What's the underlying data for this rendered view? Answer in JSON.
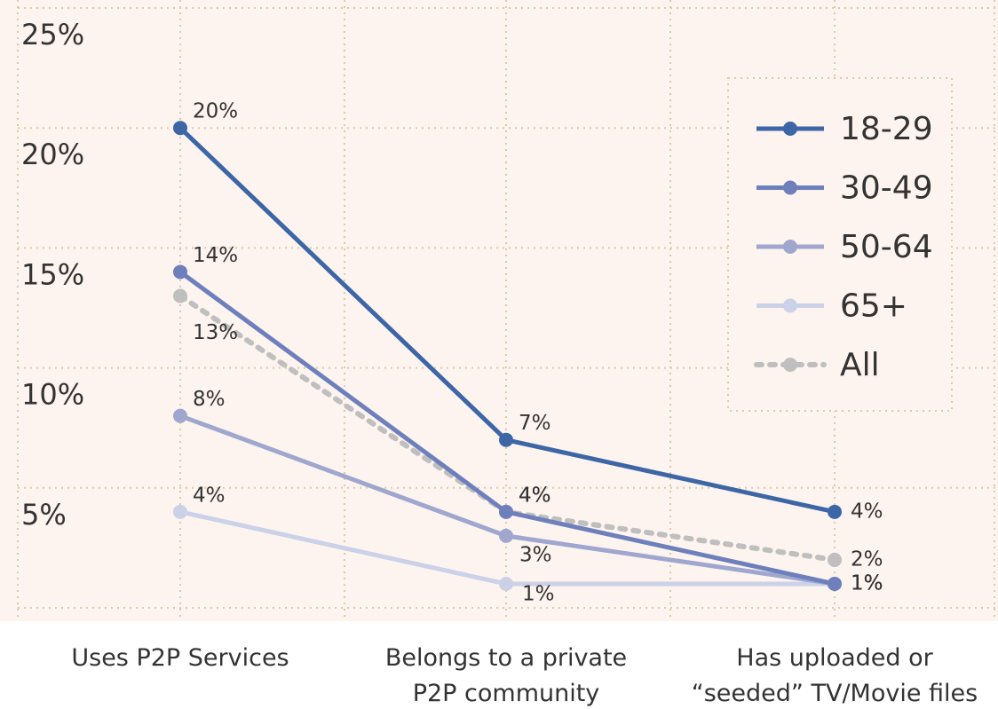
{
  "chart_data": {
    "type": "line",
    "categories": [
      "Uses P2P Services",
      "Belongs to a private\nP2P community",
      "Has uploaded or\n“seeded” TV/Movie files"
    ],
    "series": [
      {
        "name": "18-29",
        "color": "#3d66a6",
        "values": [
          20,
          7,
          4
        ],
        "value_labels": [
          "20%",
          "7%",
          "4%"
        ]
      },
      {
        "name": "30-49",
        "color": "#6e80bc",
        "values": [
          14,
          4,
          1
        ],
        "value_labels": [
          "14%",
          "4%",
          "1%"
        ]
      },
      {
        "name": "50-64",
        "color": "#9fa7cf",
        "values": [
          8,
          3,
          1
        ],
        "value_labels": [
          "8%",
          "3%",
          "1%"
        ]
      },
      {
        "name": "65+",
        "color": "#cbd2e8",
        "values": [
          4,
          1,
          1
        ],
        "value_labels": [
          "4%",
          "1%",
          "1%"
        ]
      },
      {
        "name": "All",
        "color": "#bfbfbf",
        "dashed": true,
        "values": [
          13,
          4,
          2
        ],
        "value_labels": [
          "13%",
          "4%",
          "2%"
        ]
      }
    ],
    "ylim": [
      0,
      25
    ],
    "yticks": [
      {
        "value": 5,
        "label": "5%"
      },
      {
        "value": 10,
        "label": "10%"
      },
      {
        "value": 15,
        "label": "15%"
      },
      {
        "value": 20,
        "label": "20%"
      },
      {
        "value": 25,
        "label": "25%"
      }
    ],
    "grid": true,
    "legend": "upper right"
  }
}
